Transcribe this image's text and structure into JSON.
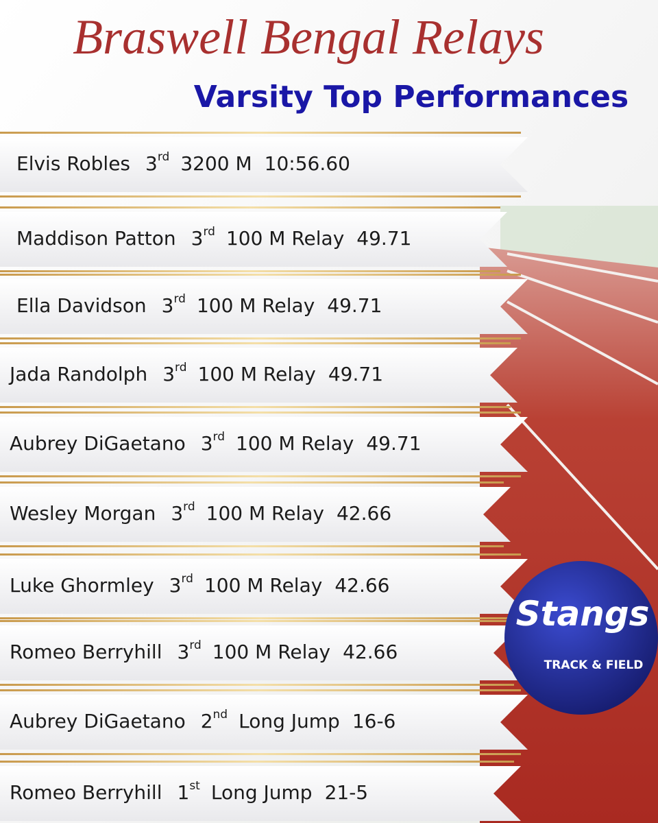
{
  "header": {
    "title": "Braswell Bengal Relays",
    "subtitle": "Varsity Top Performances"
  },
  "rows": [
    {
      "name": "Elvis Robles",
      "place": "3",
      "suffix": "rd",
      "event": "3200 M",
      "mark": "10:56.60"
    },
    {
      "name": "Maddison Patton",
      "place": "3",
      "suffix": "rd",
      "event": "100 M Relay",
      "mark": "49.71"
    },
    {
      "name": "Ella Davidson",
      "place": "3",
      "suffix": "rd",
      "event": "100 M Relay",
      "mark": "49.71"
    },
    {
      "name": "Jada Randolph",
      "place": "3",
      "suffix": "rd",
      "event": "100 M Relay",
      "mark": "49.71"
    },
    {
      "name": "Aubrey DiGaetano",
      "place": "3",
      "suffix": "rd",
      "event": "100 M Relay",
      "mark": "49.71"
    },
    {
      "name": "Wesley Morgan",
      "place": "3",
      "suffix": "rd",
      "event": "100 M Relay",
      "mark": "42.66"
    },
    {
      "name": "Luke Ghormley",
      "place": "3",
      "suffix": "rd",
      "event": "100 M Relay",
      "mark": "42.66"
    },
    {
      "name": "Romeo Berryhill",
      "place": "3",
      "suffix": "rd",
      "event": "100 M Relay",
      "mark": "42.66"
    },
    {
      "name": "Aubrey DiGaetano",
      "place": "2",
      "suffix": "nd",
      "event": "Long Jump",
      "mark": "16-6"
    },
    {
      "name": "Romeo Berryhill",
      "place": "1",
      "suffix": "st",
      "event": "Long Jump",
      "mark": "21-5"
    }
  ],
  "logo": {
    "name": "Stangs",
    "tagline": "TRACK & FIELD"
  }
}
